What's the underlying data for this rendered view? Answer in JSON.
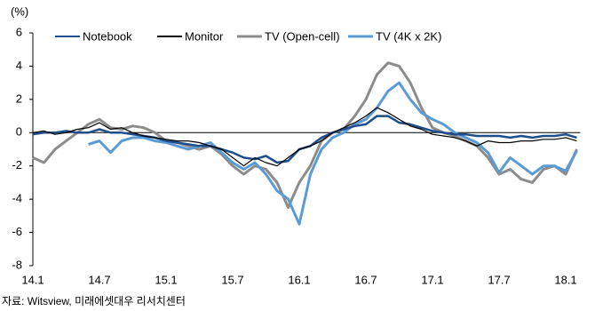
{
  "chart_data": {
    "type": "line",
    "y_label": "(%)",
    "source": "자료: Witsview, 미래에셋대우 리서치센터",
    "categories": [
      "14.1",
      null,
      null,
      null,
      null,
      null,
      "14.7",
      null,
      null,
      null,
      null,
      null,
      "15.1",
      null,
      null,
      null,
      null,
      null,
      "15.7",
      null,
      null,
      null,
      null,
      null,
      "16.1",
      null,
      null,
      null,
      null,
      null,
      "16.7",
      null,
      null,
      null,
      null,
      null,
      "17.1",
      null,
      null,
      null,
      null,
      null,
      "17.7",
      null,
      null,
      null,
      null,
      null,
      "18.1",
      null
    ],
    "ylim": [
      -8,
      6
    ],
    "yticks": [
      -8,
      -6,
      -4,
      -2,
      0,
      2,
      4,
      6
    ],
    "legend": "top",
    "series": [
      {
        "name": "Notebook",
        "color": "#1f4e8c",
        "values": [
          -0.1,
          0,
          0,
          0.1,
          0,
          0,
          0.2,
          0,
          0,
          -0.1,
          -0.2,
          -0.3,
          -0.5,
          -0.6,
          -0.7,
          -0.8,
          -0.8,
          -1,
          -1.2,
          -1.5,
          -1.6,
          -1.4,
          -1.8,
          -1.7,
          -1,
          -0.8,
          -0.3,
          0,
          0.2,
          0.4,
          0.5,
          1,
          1,
          0.6,
          0.5,
          0.3,
          0.1,
          0,
          -0.1,
          -0.1,
          -0.2,
          -0.2,
          -0.2,
          -0.3,
          -0.2,
          -0.3,
          -0.2,
          -0.2,
          -0.1,
          -0.3
        ]
      },
      {
        "name": "Monitor",
        "color": "#000000",
        "values": [
          0,
          0.1,
          -0.1,
          0,
          0.2,
          0.3,
          0.6,
          0.2,
          0.3,
          0,
          -0.2,
          -0.3,
          -0.4,
          -0.5,
          -0.5,
          -0.6,
          -0.8,
          -1,
          -1.5,
          -2,
          -1.5,
          -1.8,
          -2,
          -1.5,
          -1,
          -0.8,
          -0.5,
          0,
          0.3,
          0.6,
          1,
          1.5,
          1.2,
          0.8,
          0.4,
          0.2,
          -0.1,
          -0.2,
          -0.3,
          -0.5,
          -0.8,
          -0.5,
          -0.6,
          -0.6,
          -0.5,
          -0.5,
          -0.4,
          -0.4,
          -0.3,
          -0.5
        ]
      },
      {
        "name": "TV (Open-cell)",
        "color": "#8c8c8c",
        "values": [
          -1.5,
          -1.8,
          -1,
          -0.5,
          0,
          0.5,
          0.8,
          0.3,
          0.2,
          0.4,
          0.3,
          0,
          -0.5,
          -0.6,
          -0.8,
          -1,
          -0.8,
          -1.3,
          -2,
          -2.5,
          -2,
          -2.2,
          -3,
          -4.5,
          -3,
          -2,
          -0.5,
          0,
          0.2,
          1,
          2,
          3.5,
          4.2,
          4,
          3,
          1.5,
          0.3,
          0,
          -0.2,
          -0.5,
          -0.8,
          -1.5,
          -2.5,
          -2.2,
          -2.8,
          -3,
          -2.2,
          -2,
          -2.5,
          -1
        ]
      },
      {
        "name": "TV (4K x 2K)",
        "color": "#5b9bd5",
        "values": [
          null,
          null,
          null,
          null,
          null,
          -0.7,
          -0.5,
          -1.2,
          -0.5,
          -0.3,
          -0.3,
          -0.5,
          -0.6,
          -0.8,
          -1,
          -0.8,
          -0.6,
          -1.2,
          -1.8,
          -2.2,
          -1.8,
          -2.5,
          -3.5,
          -4,
          -5.5,
          -2.5,
          -1,
          -0.3,
          0,
          0.5,
          0.8,
          1.5,
          2.5,
          3,
          2,
          1.2,
          0.8,
          0.5,
          0,
          -0.3,
          -0.6,
          -1.2,
          -2.4,
          -1.5,
          -2,
          -2.5,
          -2,
          -2,
          -2.3,
          -1.1
        ]
      }
    ]
  }
}
